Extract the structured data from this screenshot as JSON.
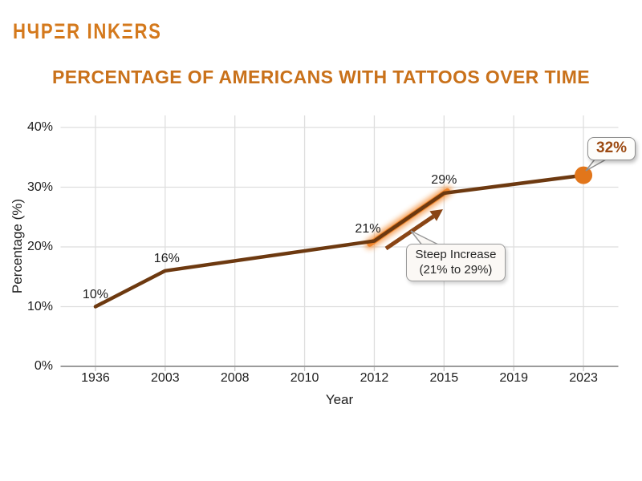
{
  "logo": {
    "brand": "HYPER INKERS",
    "display_text": "HЧPΞR INKΞRS"
  },
  "title": "PERCENTAGE OF AMERICANS WITH TATTOOS OVER TIME",
  "colors": {
    "logo_orange": "#D4791C",
    "title_orange": "#C9711A",
    "line_brown": "#6D3910",
    "dot_orange": "#E2761B",
    "glow_orange": "#F28428",
    "arrow_brown": "#8A4515",
    "grid_gray": "#DEDEDE",
    "axis_gray": "#9B9B9B",
    "text_dark": "#1D1D1D",
    "callout_value_brown": "#9C4A12"
  },
  "chart_data": {
    "type": "line",
    "title": "PERCENTAGE OF AMERICANS WITH TATTOOS OVER TIME",
    "xlabel": "Year",
    "ylabel": "Percentage (%)",
    "categories": [
      "1936",
      "2003",
      "2008",
      "2010",
      "2012",
      "2015",
      "2019",
      "2023"
    ],
    "ytick_values": [
      0,
      10,
      20,
      30,
      40
    ],
    "ytick_labels": [
      "0%",
      "10%",
      "20%",
      "30%",
      "40%"
    ],
    "ylim": [
      0,
      42
    ],
    "grid": true,
    "legend": false,
    "series": [
      {
        "name": "Percentage of Americans with tattoos",
        "color": "#6D3910",
        "points": [
          {
            "x": "1936",
            "y": 10,
            "label": "10%"
          },
          {
            "x": "2003",
            "y": 16,
            "label": "16%"
          },
          {
            "x": "2012",
            "y": 21,
            "label": "21%"
          },
          {
            "x": "2015",
            "y": 29,
            "label": "29%"
          },
          {
            "x": "2023",
            "y": 32,
            "label": "32%",
            "marker": "dot"
          }
        ]
      }
    ],
    "annotations": [
      {
        "type": "callout",
        "text": "32%",
        "target": {
          "x": "2023",
          "y": 32
        }
      },
      {
        "type": "callout",
        "lines": [
          "Steep Increase",
          "(21% to 29%)"
        ],
        "target_segment": [
          "2012",
          "2015"
        ]
      },
      {
        "type": "arrow",
        "from": {
          "x": "2012",
          "y": 21
        },
        "to": {
          "x": "2015",
          "y": 29
        }
      },
      {
        "type": "highlight",
        "segment": [
          "2012",
          "2015"
        ],
        "color": "#F28428"
      }
    ]
  }
}
